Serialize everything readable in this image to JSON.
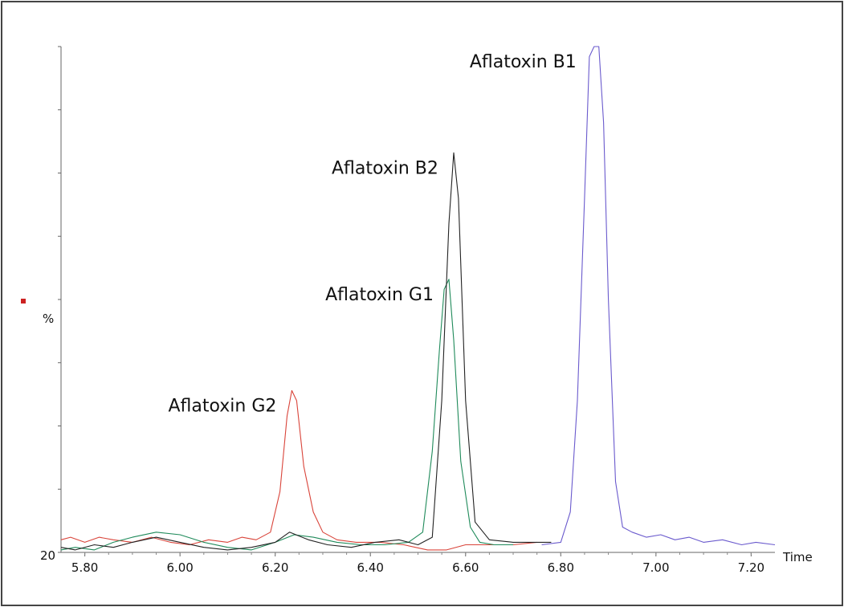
{
  "chart_data": {
    "type": "line",
    "xlabel": "Time",
    "ylabel": "%",
    "y_baseline_label": "20",
    "xlim": [
      5.75,
      7.25
    ],
    "ylim": [
      0,
      100
    ],
    "x_ticks": [
      5.8,
      6.0,
      6.2,
      6.4,
      6.6,
      6.8,
      7.0,
      7.2
    ],
    "x_tick_labels": [
      "5.80",
      "6.00",
      "6.20",
      "6.40",
      "6.60",
      "6.80",
      "7.00",
      "7.20"
    ],
    "grid": false,
    "legend_marker_color": "#cc2222",
    "annotations": [
      {
        "text": "Aflatoxin B1",
        "x": 6.87,
        "y": 100
      },
      {
        "text": "Aflatoxin B2",
        "x": 6.58,
        "y": 79
      },
      {
        "text": "Aflatoxin G1",
        "x": 6.57,
        "y": 54
      },
      {
        "text": "Aflatoxin G2",
        "x": 6.24,
        "y": 32
      }
    ],
    "series": [
      {
        "color": "#d9443a",
        "x": [
          5.75,
          5.77,
          5.8,
          5.83,
          5.86,
          5.9,
          5.94,
          5.98,
          6.02,
          6.06,
          6.1,
          6.13,
          6.16,
          6.19,
          6.21,
          6.225,
          6.235,
          6.245,
          6.26,
          6.28,
          6.3,
          6.33,
          6.37,
          6.42,
          6.47,
          6.52,
          6.56,
          6.6,
          6.65,
          6.7,
          6.75
        ],
        "y": [
          2.5,
          3,
          2,
          3,
          2.5,
          2,
          3,
          2,
          1.5,
          2.5,
          2,
          3,
          2.5,
          4,
          12,
          27,
          32,
          30,
          17,
          8,
          4,
          2.5,
          2,
          2,
          1.5,
          0.5,
          0.5,
          1.5,
          1.5,
          1.5,
          2
        ]
      },
      {
        "color": "#1f8a5a",
        "x": [
          5.75,
          5.78,
          5.82,
          5.86,
          5.9,
          5.95,
          6.0,
          6.05,
          6.1,
          6.15,
          6.2,
          6.24,
          6.28,
          6.33,
          6.38,
          6.43,
          6.48,
          6.51,
          6.53,
          6.545,
          6.555,
          6.565,
          6.575,
          6.59,
          6.61,
          6.63,
          6.66,
          6.7
        ],
        "y": [
          0.5,
          1,
          0.5,
          2,
          3,
          4,
          3.5,
          2,
          1,
          0.5,
          2,
          3.5,
          3,
          2,
          1.5,
          1.5,
          2,
          4,
          20,
          40,
          52,
          54,
          42,
          18,
          5,
          2,
          1.5,
          1.5
        ]
      },
      {
        "color": "#222222",
        "x": [
          5.75,
          5.78,
          5.82,
          5.86,
          5.9,
          5.95,
          6.0,
          6.05,
          6.1,
          6.15,
          6.2,
          6.23,
          6.27,
          6.31,
          6.36,
          6.41,
          6.46,
          6.5,
          6.53,
          6.55,
          6.565,
          6.575,
          6.585,
          6.6,
          6.62,
          6.65,
          6.7,
          6.78
        ],
        "y": [
          1,
          0.5,
          1.5,
          1,
          2,
          3,
          2,
          1,
          0.5,
          1,
          2,
          4,
          2.5,
          1.5,
          1,
          2,
          2.5,
          1.5,
          3,
          30,
          65,
          79,
          70,
          30,
          6,
          2.5,
          2,
          2
        ]
      },
      {
        "color": "#6a5acd",
        "x": [
          6.76,
          6.8,
          6.82,
          6.835,
          6.85,
          6.86,
          6.87,
          6.88,
          6.89,
          6.9,
          6.915,
          6.93,
          6.95,
          6.98,
          7.01,
          7.04,
          7.07,
          7.1,
          7.14,
          7.18,
          7.21,
          7.25
        ],
        "y": [
          1.5,
          2,
          8,
          30,
          70,
          98,
          100,
          100,
          85,
          50,
          14,
          5,
          4,
          3,
          3.5,
          2.5,
          3,
          2,
          2.5,
          1.5,
          2,
          1.5
        ]
      }
    ]
  }
}
